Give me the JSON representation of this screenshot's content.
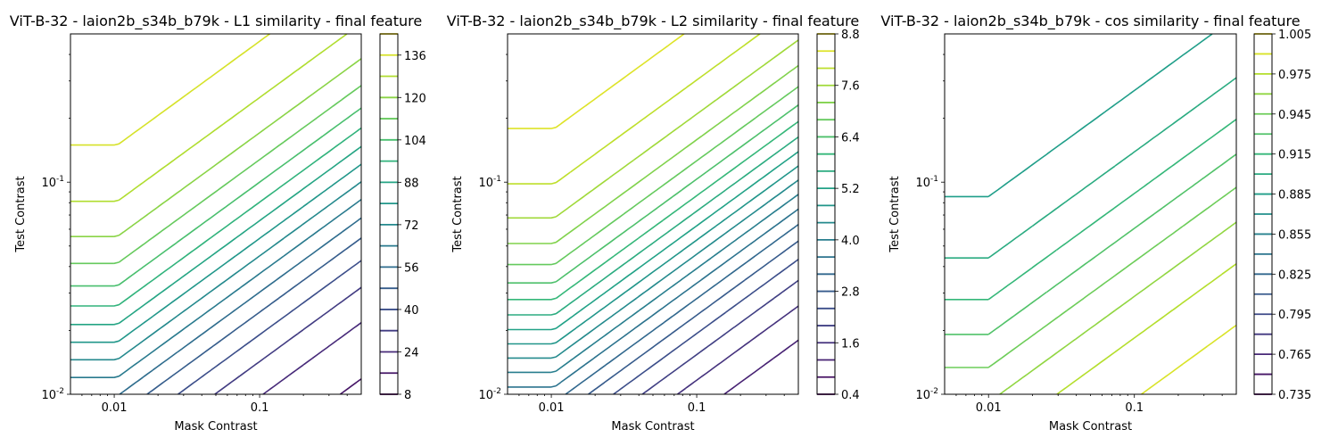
{
  "chart_data": [
    {
      "type": "contour",
      "title": "ViT-B-32 - laion2b_s34b_b79k - L1 similarity - final feature",
      "xlabel": "Mask Contrast",
      "ylabel": "Test Contrast",
      "xscale": "log",
      "yscale": "log",
      "xlim": [
        0.005,
        0.5
      ],
      "ylim": [
        0.01,
        0.5
      ],
      "x_tick_labels": [
        {
          "value": 0.01,
          "label": "0.01"
        },
        {
          "value": 0.1,
          "label": "0.1"
        }
      ],
      "y_tick_labels": [
        {
          "value": 0.01,
          "label": "10^-2"
        },
        {
          "value": 0.1,
          "label": "10^-1"
        }
      ],
      "colorbar": {
        "min": 8,
        "max": 144,
        "step": 8,
        "tick_labels": [
          "8",
          "24",
          "40",
          "56",
          "72",
          "88",
          "104",
          "120",
          "136"
        ]
      },
      "levels": [
        8,
        16,
        24,
        32,
        40,
        48,
        56,
        64,
        72,
        80,
        88,
        96,
        104,
        112,
        120,
        128,
        136,
        144
      ],
      "field": {
        "d0": 0.0105,
        "k": 0.5,
        "s": 0.016,
        "a": 0.0,
        "b": 1.0,
        "c": 0.0,
        "lo": 8,
        "hi": 144
      }
    },
    {
      "type": "contour",
      "title": "ViT-B-32 - laion2b_s34b_b79k - L2 similarity - final feature",
      "xlabel": "Mask Contrast",
      "ylabel": "Test Contrast",
      "xscale": "log",
      "yscale": "log",
      "xlim": [
        0.005,
        0.5
      ],
      "ylim": [
        0.01,
        0.5
      ],
      "x_tick_labels": [
        {
          "value": 0.01,
          "label": "0.01"
        },
        {
          "value": 0.1,
          "label": "0.1"
        }
      ],
      "y_tick_labels": [
        {
          "value": 0.01,
          "label": "10^-2"
        },
        {
          "value": 0.1,
          "label": "10^-1"
        }
      ],
      "colorbar": {
        "min": 0.4,
        "max": 8.8,
        "step": 0.4,
        "tick_labels": [
          "0.4",
          "1.6",
          "2.8",
          "4.0",
          "5.2",
          "6.4",
          "7.6",
          "8.8"
        ]
      },
      "levels": [
        0.4,
        0.8,
        1.2,
        1.6,
        2.0,
        2.4,
        2.8,
        3.2,
        3.6,
        4.0,
        4.4,
        4.8,
        5.2,
        5.6,
        6.0,
        6.4,
        6.8,
        7.2,
        7.6,
        8.0,
        8.4,
        8.8
      ],
      "field": {
        "d0": 0.0105,
        "k": 0.5,
        "s": 0.016,
        "a": 0.0,
        "b": 1.0,
        "c": 0.0,
        "lo": 0.4,
        "hi": 8.8
      }
    },
    {
      "type": "contour",
      "title": "ViT-B-32 - laion2b_s34b_b79k - cos similarity - final feature",
      "xlabel": "Mask Contrast",
      "ylabel": "Test Contrast",
      "xscale": "log",
      "yscale": "log",
      "xlim": [
        0.005,
        0.5
      ],
      "ylim": [
        0.01,
        0.5
      ],
      "x_tick_labels": [
        {
          "value": 0.01,
          "label": "0.01"
        },
        {
          "value": 0.1,
          "label": "0.1"
        }
      ],
      "y_tick_labels": [
        {
          "value": 0.01,
          "label": "10^-2"
        },
        {
          "value": 0.1,
          "label": "10^-1"
        }
      ],
      "colorbar": {
        "min": 0.735,
        "max": 1.005,
        "step": 0.015,
        "tick_labels": [
          "0.735",
          "0.765",
          "0.795",
          "0.825",
          "0.855",
          "0.885",
          "0.915",
          "0.945",
          "0.975",
          "1.005"
        ]
      },
      "levels": [
        0.735,
        0.75,
        0.765,
        0.78,
        0.795,
        0.81,
        0.825,
        0.84,
        0.855,
        0.87,
        0.885,
        0.9,
        0.915,
        0.93,
        0.945,
        0.96,
        0.975,
        0.99,
        1.005
      ],
      "field": {
        "d0": 0.01,
        "k": 0.5,
        "s": 0.016,
        "a": 0.0,
        "b": -0.5,
        "c": 1.0,
        "lo": 0.735,
        "hi": 1.005
      }
    }
  ]
}
